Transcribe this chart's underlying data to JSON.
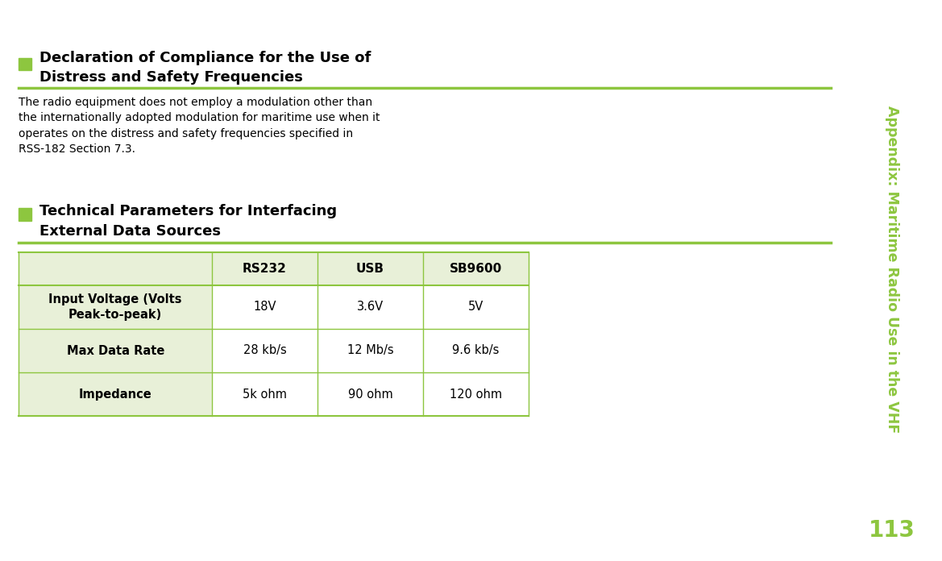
{
  "page_bg": "#ffffff",
  "green_color": "#8dc63f",
  "light_green_bg": "#e8f0d8",
  "sidebar_text": "Appendix: Maritime Radio Use in the VHF",
  "page_number": "113",
  "section1_title": "Declaration of Compliance for the Use of\nDistress and Safety Frequencies",
  "section1_body": "The radio equipment does not employ a modulation other than\nthe internationally adopted modulation for maritime use when it\noperates on the distress and safety frequencies specified in\nRSS-182 Section 7.3.",
  "section2_title": "Technical Parameters for Interfacing\nExternal Data Sources",
  "table_headers": [
    "",
    "RS232",
    "USB",
    "SB9600"
  ],
  "table_rows": [
    [
      "Input Voltage (Volts\nPeak-to-peak)",
      "18V",
      "3.6V",
      "5V"
    ],
    [
      "Max Data Rate",
      "28 kb/s",
      "12 Mb/s",
      "9.6 kb/s"
    ],
    [
      "Impedance",
      "5k ohm",
      "90 ohm",
      "120 ohm"
    ]
  ]
}
